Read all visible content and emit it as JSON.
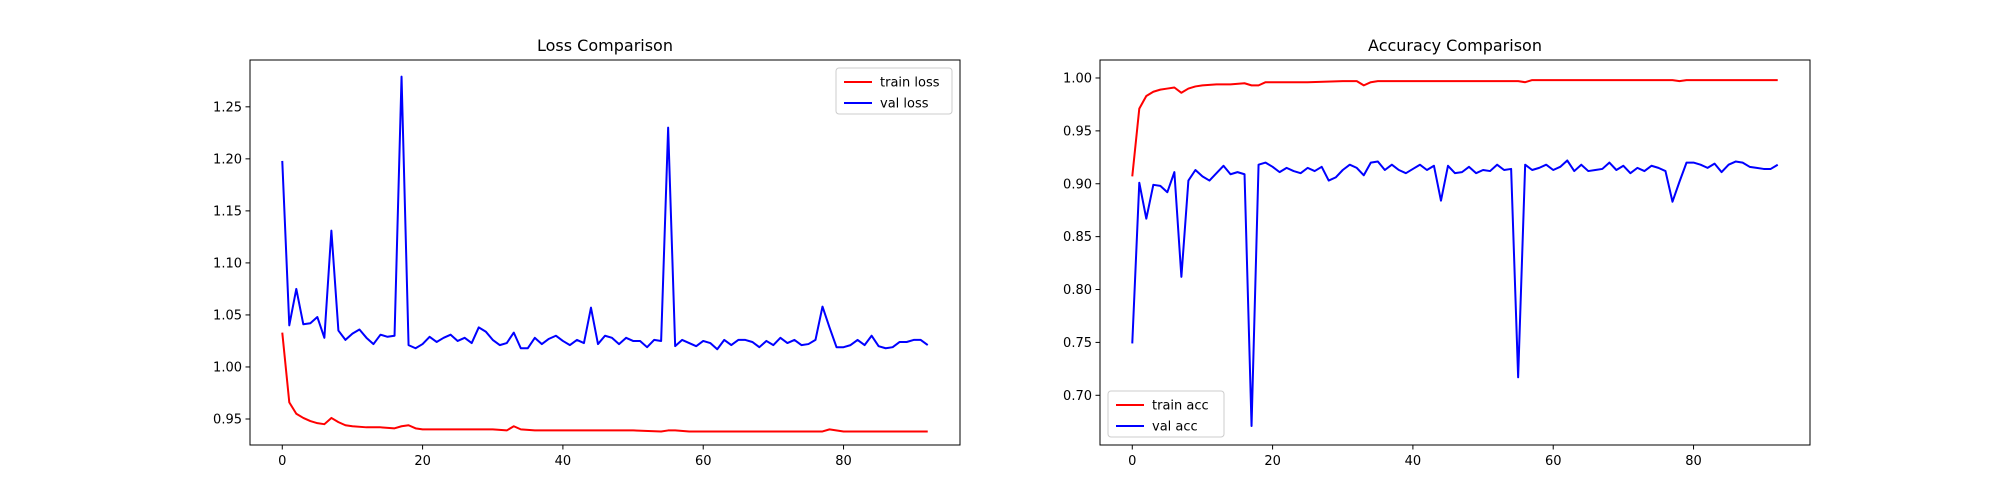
{
  "chart_data": [
    {
      "type": "line",
      "title": "Loss Comparison",
      "xlabel": "",
      "ylabel": "",
      "xlim": [
        -4.6,
        96.6
      ],
      "ylim": [
        0.925,
        1.295
      ],
      "xticks": [
        0,
        20,
        40,
        60,
        80
      ],
      "yticks": [
        0.95,
        1.0,
        1.05,
        1.1,
        1.15,
        1.2,
        1.25
      ],
      "ytick_labels": [
        "0.95",
        "1.00",
        "1.05",
        "1.10",
        "1.15",
        "1.20",
        "1.25"
      ],
      "grid": false,
      "legend_position": "upper-right",
      "series": [
        {
          "name": "train loss",
          "color": "#ff0000",
          "x": [
            0,
            1,
            2,
            3,
            4,
            5,
            6,
            7,
            8,
            9,
            10,
            12,
            14,
            16,
            17,
            18,
            19,
            20,
            25,
            30,
            32,
            33,
            34,
            36,
            40,
            45,
            50,
            54,
            55,
            56,
            58,
            60,
            65,
            70,
            75,
            77,
            78,
            80,
            85,
            90,
            92
          ],
          "y": [
            1.033,
            0.966,
            0.955,
            0.951,
            0.948,
            0.946,
            0.945,
            0.951,
            0.947,
            0.944,
            0.943,
            0.942,
            0.942,
            0.941,
            0.943,
            0.944,
            0.941,
            0.94,
            0.94,
            0.94,
            0.939,
            0.943,
            0.94,
            0.939,
            0.939,
            0.939,
            0.939,
            0.938,
            0.939,
            0.939,
            0.938,
            0.938,
            0.938,
            0.938,
            0.938,
            0.938,
            0.94,
            0.938,
            0.938,
            0.938,
            0.938
          ]
        },
        {
          "name": "val loss",
          "color": "#0000ff",
          "x": [
            0,
            1,
            2,
            3,
            4,
            5,
            6,
            7,
            8,
            9,
            10,
            11,
            12,
            13,
            14,
            15,
            16,
            17,
            18,
            19,
            20,
            21,
            22,
            23,
            24,
            25,
            26,
            27,
            28,
            29,
            30,
            31,
            32,
            33,
            34,
            35,
            36,
            37,
            38,
            39,
            40,
            41,
            42,
            43,
            44,
            45,
            46,
            47,
            48,
            49,
            50,
            51,
            52,
            53,
            54,
            55,
            56,
            57,
            58,
            59,
            60,
            61,
            62,
            63,
            64,
            65,
            66,
            67,
            68,
            69,
            70,
            71,
            72,
            73,
            74,
            75,
            76,
            77,
            78,
            79,
            80,
            81,
            82,
            83,
            84,
            85,
            86,
            87,
            88,
            89,
            90,
            91,
            92
          ],
          "y": [
            1.198,
            1.04,
            1.075,
            1.041,
            1.042,
            1.048,
            1.028,
            1.131,
            1.035,
            1.026,
            1.032,
            1.036,
            1.028,
            1.022,
            1.031,
            1.029,
            1.03,
            1.279,
            1.021,
            1.018,
            1.022,
            1.029,
            1.024,
            1.028,
            1.031,
            1.025,
            1.028,
            1.023,
            1.038,
            1.034,
            1.026,
            1.021,
            1.023,
            1.033,
            1.018,
            1.018,
            1.028,
            1.022,
            1.027,
            1.03,
            1.025,
            1.021,
            1.026,
            1.023,
            1.057,
            1.022,
            1.03,
            1.028,
            1.022,
            1.028,
            1.025,
            1.025,
            1.019,
            1.026,
            1.025,
            1.23,
            1.02,
            1.026,
            1.023,
            1.02,
            1.025,
            1.023,
            1.017,
            1.026,
            1.021,
            1.026,
            1.026,
            1.024,
            1.019,
            1.025,
            1.021,
            1.028,
            1.023,
            1.026,
            1.021,
            1.022,
            1.026,
            1.058,
            1.038,
            1.019,
            1.019,
            1.021,
            1.026,
            1.021,
            1.03,
            1.02,
            1.018,
            1.019,
            1.024,
            1.024,
            1.026,
            1.026,
            1.021
          ]
        }
      ]
    },
    {
      "type": "line",
      "title": "Accuracy Comparison",
      "xlabel": "",
      "ylabel": "",
      "xlim": [
        -4.6,
        96.6
      ],
      "ylim": [
        0.653,
        1.017
      ],
      "xticks": [
        0,
        20,
        40,
        60,
        80
      ],
      "yticks": [
        0.7,
        0.75,
        0.8,
        0.85,
        0.9,
        0.95,
        1.0
      ],
      "ytick_labels": [
        "0.70",
        "0.75",
        "0.80",
        "0.85",
        "0.90",
        "0.95",
        "1.00"
      ],
      "grid": false,
      "legend_position": "lower-left",
      "series": [
        {
          "name": "train acc",
          "color": "#ff0000",
          "x": [
            0,
            1,
            2,
            3,
            4,
            5,
            6,
            7,
            8,
            9,
            10,
            12,
            14,
            16,
            17,
            18,
            19,
            20,
            25,
            30,
            32,
            33,
            34,
            35,
            40,
            45,
            50,
            55,
            56,
            57,
            60,
            65,
            70,
            75,
            77,
            78,
            79,
            80,
            85,
            90,
            92
          ],
          "y": [
            0.907,
            0.971,
            0.983,
            0.987,
            0.989,
            0.99,
            0.991,
            0.986,
            0.99,
            0.992,
            0.993,
            0.994,
            0.994,
            0.995,
            0.993,
            0.993,
            0.996,
            0.996,
            0.996,
            0.997,
            0.997,
            0.993,
            0.996,
            0.997,
            0.997,
            0.997,
            0.997,
            0.997,
            0.996,
            0.998,
            0.998,
            0.998,
            0.998,
            0.998,
            0.998,
            0.997,
            0.998,
            0.998,
            0.998,
            0.998,
            0.998
          ]
        },
        {
          "name": "val acc",
          "color": "#0000ff",
          "x": [
            0,
            1,
            2,
            3,
            4,
            5,
            6,
            7,
            8,
            9,
            10,
            11,
            12,
            13,
            14,
            15,
            16,
            17,
            18,
            19,
            20,
            21,
            22,
            23,
            24,
            25,
            26,
            27,
            28,
            29,
            30,
            31,
            32,
            33,
            34,
            35,
            36,
            37,
            38,
            39,
            40,
            41,
            42,
            43,
            44,
            45,
            46,
            47,
            48,
            49,
            50,
            51,
            52,
            53,
            54,
            55,
            56,
            57,
            58,
            59,
            60,
            61,
            62,
            63,
            64,
            65,
            66,
            67,
            68,
            69,
            70,
            71,
            72,
            73,
            74,
            75,
            76,
            77,
            78,
            79,
            80,
            81,
            82,
            83,
            84,
            85,
            86,
            87,
            88,
            89,
            90,
            91,
            92
          ],
          "y": [
            0.749,
            0.901,
            0.867,
            0.899,
            0.898,
            0.892,
            0.911,
            0.812,
            0.903,
            0.913,
            0.907,
            0.903,
            0.91,
            0.917,
            0.909,
            0.911,
            0.909,
            0.671,
            0.918,
            0.92,
            0.916,
            0.911,
            0.915,
            0.912,
            0.91,
            0.915,
            0.912,
            0.916,
            0.903,
            0.906,
            0.913,
            0.918,
            0.915,
            0.908,
            0.92,
            0.921,
            0.913,
            0.918,
            0.913,
            0.91,
            0.914,
            0.918,
            0.913,
            0.917,
            0.884,
            0.917,
            0.91,
            0.911,
            0.916,
            0.91,
            0.913,
            0.912,
            0.918,
            0.913,
            0.914,
            0.717,
            0.918,
            0.913,
            0.915,
            0.918,
            0.913,
            0.916,
            0.922,
            0.912,
            0.918,
            0.912,
            0.913,
            0.914,
            0.92,
            0.913,
            0.917,
            0.91,
            0.915,
            0.912,
            0.917,
            0.915,
            0.912,
            0.883,
            0.902,
            0.92,
            0.92,
            0.918,
            0.915,
            0.919,
            0.911,
            0.918,
            0.921,
            0.92,
            0.916,
            0.915,
            0.914,
            0.914,
            0.918
          ]
        }
      ]
    }
  ]
}
